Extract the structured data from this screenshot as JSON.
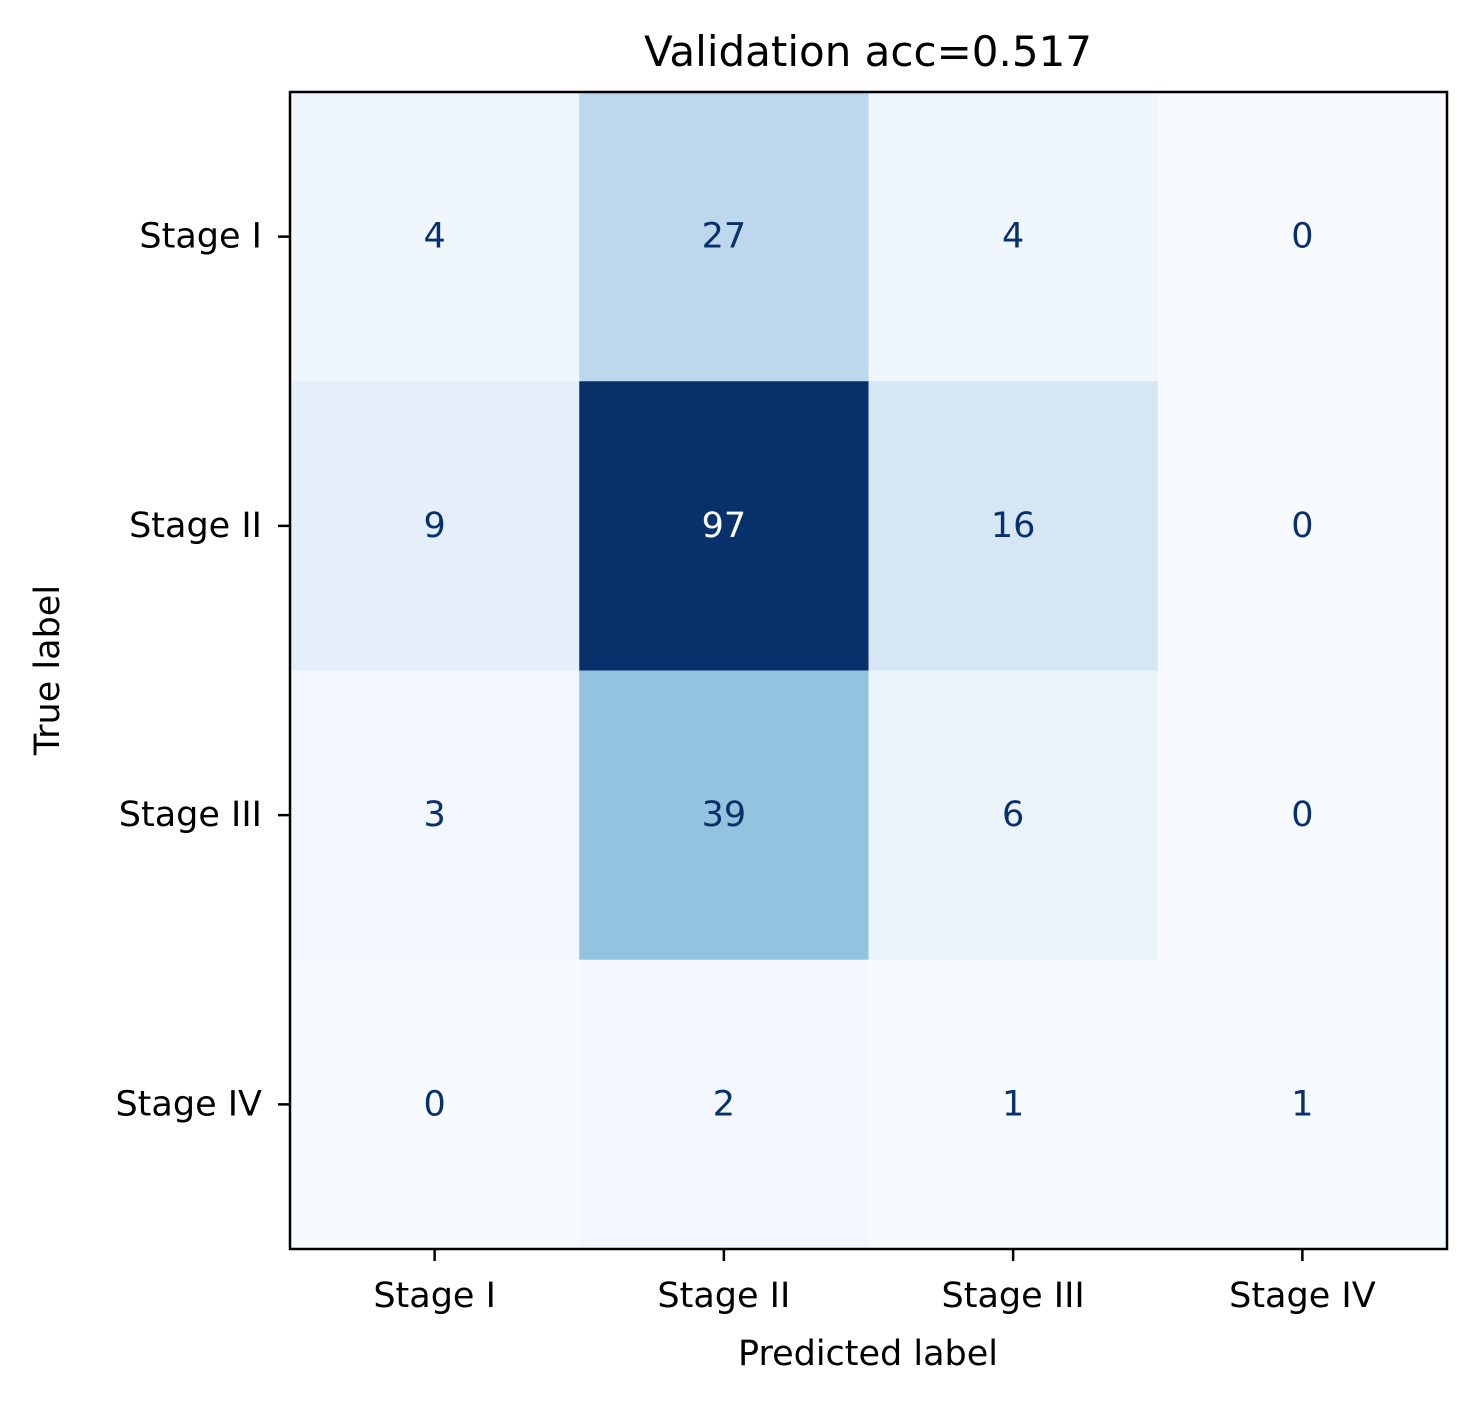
{
  "chart_data": {
    "type": "heatmap",
    "title": "Validation acc=0.517",
    "xlabel": "Predicted label",
    "ylabel": "True label",
    "x_categories": [
      "Stage I",
      "Stage II",
      "Stage III",
      "Stage IV"
    ],
    "y_categories": [
      "Stage I",
      "Stage II",
      "Stage III",
      "Stage IV"
    ],
    "matrix": [
      [
        4,
        27,
        4,
        0
      ],
      [
        9,
        97,
        16,
        0
      ],
      [
        3,
        39,
        6,
        0
      ],
      [
        0,
        2,
        1,
        1
      ]
    ],
    "colormap": "Blues",
    "value_range": [
      0,
      97
    ],
    "colors": {
      "text_light": "#ffffff",
      "text_dark": "#08306b",
      "axis": "#000000"
    }
  }
}
